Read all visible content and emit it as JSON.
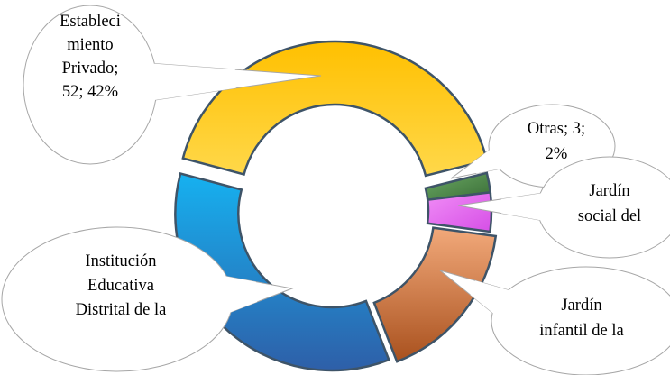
{
  "chart_data": {
    "type": "doughnut",
    "title": "",
    "slices": [
      {
        "label": "Establecimiento Privado",
        "value": 52,
        "percent": 42,
        "color": "#FFC000"
      },
      {
        "label": "Otras",
        "value": 3,
        "percent": 2,
        "color": "#4E8A49"
      },
      {
        "label": "Jardín social del",
        "value": null,
        "percent": 4,
        "color": "#E36CF0"
      },
      {
        "label": "Jardín infantil de la",
        "value": null,
        "percent": 17,
        "color": "#C86A2E"
      },
      {
        "label": "Institución Educativa Distrital de la",
        "value": null,
        "percent": 35,
        "color": "#1F8FD8"
      }
    ],
    "callouts": [
      {
        "lines": [
          "Estableci",
          "miento",
          "Privado;",
          "52; 42%"
        ]
      },
      {
        "lines": [
          "Otras; 3;",
          "2%"
        ]
      },
      {
        "lines": [
          "Jardín",
          "social del"
        ]
      },
      {
        "lines": [
          "Jardín",
          "infantil de la"
        ]
      },
      {
        "lines": [
          "Institución",
          "Educativa",
          "Distrital de la"
        ]
      }
    ]
  }
}
